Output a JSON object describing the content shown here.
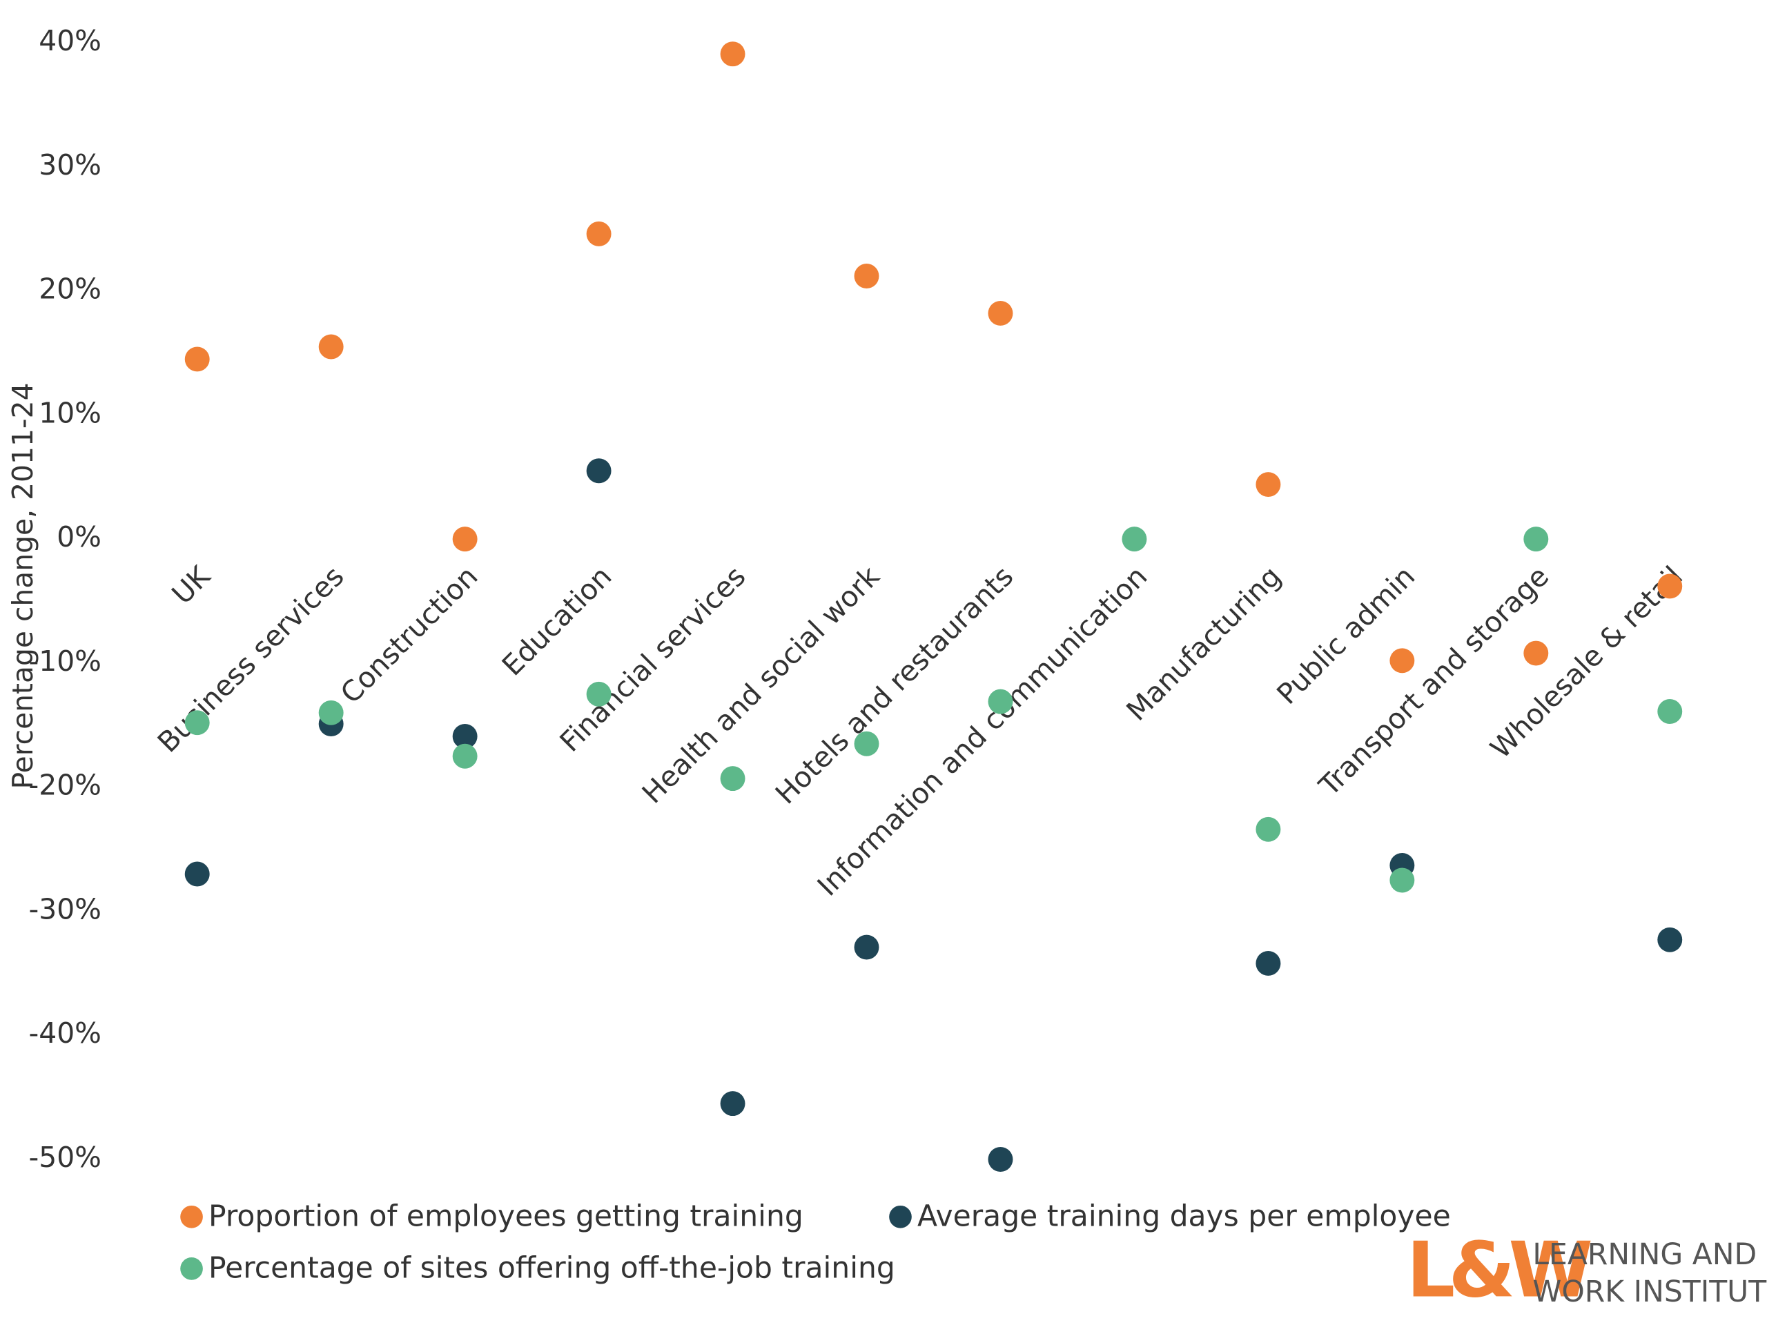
{
  "chart_data": {
    "type": "scatter",
    "y_axis_label": "Percentage change, 2011-24",
    "categories": [
      "UK",
      "Business services",
      "Construction",
      "Education",
      "Financial services",
      "Health and social work",
      "Hotels and restaurants",
      "Information and communication",
      "Manufacturing",
      "Public admin",
      "Transport and storage",
      "Wholesale & retail"
    ],
    "series": [
      {
        "name": "Proportion of employees getting training",
        "color": "#f08035",
        "values": [
          14.5,
          15.5,
          0,
          24.6,
          39.1,
          21.2,
          18.2,
          null,
          4.4,
          -9.8,
          -9.2,
          -3.8
        ]
      },
      {
        "name": "Average training days per employee",
        "color": "#1f4555",
        "values": [
          -27,
          -14.9,
          -15.9,
          5.5,
          -45.5,
          -32.9,
          -50,
          null,
          -34.2,
          -26.3,
          null,
          -32.3
        ]
      },
      {
        "name": "Percentage of sites offering off-the-job training",
        "color": "#5db88a",
        "values": [
          -14.8,
          -14,
          -17.5,
          -12.5,
          -19.3,
          -16.5,
          -13.1,
          0,
          -23.4,
          -27.5,
          0,
          -13.9
        ]
      }
    ],
    "ylim": [
      -50,
      40
    ],
    "yticks": [
      {
        "value": 40,
        "label": "40%"
      },
      {
        "value": 30,
        "label": "30%"
      },
      {
        "value": 20,
        "label": "20%"
      },
      {
        "value": 10,
        "label": "10%"
      },
      {
        "value": 0,
        "label": "0%"
      },
      {
        "value": -10,
        "label": "-10%"
      },
      {
        "value": -20,
        "label": "-20%"
      },
      {
        "value": -30,
        "label": "-30%"
      },
      {
        "value": -40,
        "label": "-40%"
      },
      {
        "value": -50,
        "label": "-50%"
      }
    ],
    "grid": false,
    "logo": {
      "mark": "L&W",
      "line1": "LEARNING AND",
      "line2": "WORK INSTITUTE"
    }
  }
}
